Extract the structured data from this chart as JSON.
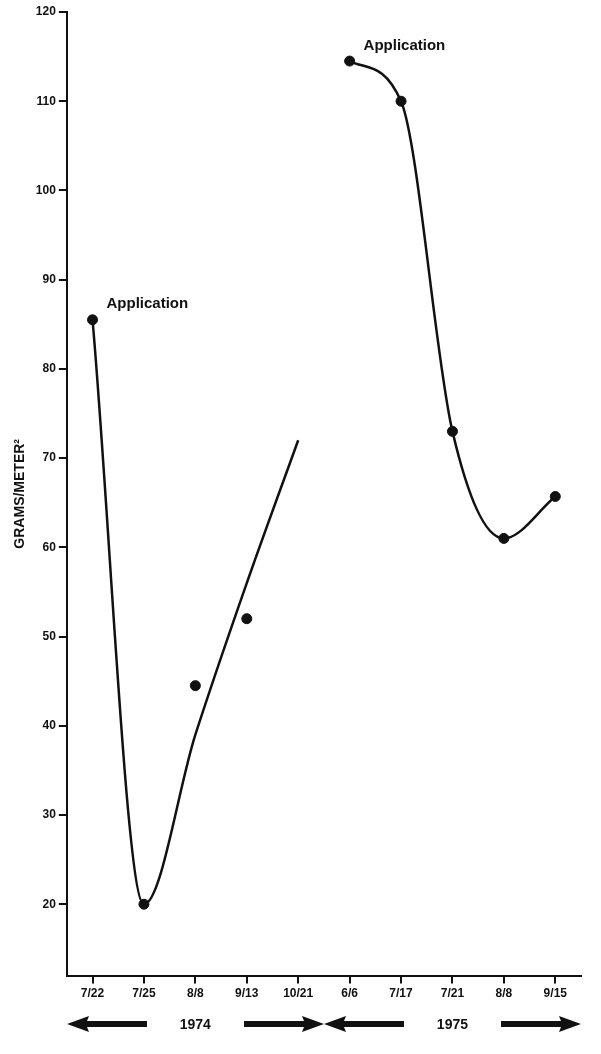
{
  "chart_data": {
    "type": "line",
    "ylabel": "GRAMS/METER²",
    "categories": [
      "7/22",
      "7/25",
      "8/8",
      "9/13",
      "10/21",
      "6/6",
      "7/17",
      "7/21",
      "8/8",
      "9/15"
    ],
    "series": [
      {
        "type": "scatter",
        "color": "#111111",
        "values": [
          85.5,
          20,
          44.5,
          52,
          null,
          114.5,
          110,
          73,
          61,
          65.7
        ]
      },
      {
        "type": "line",
        "color": "#111111",
        "marker": "none",
        "values": [
          85.5,
          20,
          39,
          56,
          72,
          null,
          null,
          null,
          null,
          null
        ]
      },
      {
        "type": "line",
        "color": "#111111",
        "marker": "none",
        "values": [
          null,
          null,
          null,
          null,
          null,
          114.5,
          110,
          73,
          61,
          65.7
        ]
      }
    ],
    "ylim": [
      12,
      120
    ],
    "yticks": [
      20,
      30,
      40,
      50,
      60,
      70,
      80,
      90,
      100,
      110,
      120
    ],
    "grid": false,
    "legend": false,
    "marker": "circle",
    "line_style": "solid",
    "annotations": [
      {
        "text": "Application",
        "x": "7/22",
        "y": 85.5
      },
      {
        "text": "Application",
        "x": "6/6",
        "y": 114.5
      },
      "1974",
      "1975"
    ]
  }
}
